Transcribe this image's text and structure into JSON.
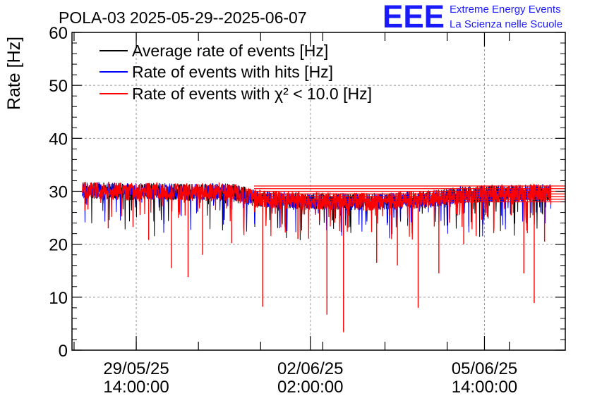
{
  "title": "POLA-03 2025-05-29--2025-06-07",
  "logo": {
    "mark": "EEE",
    "line1": "Extreme Energy Events",
    "line2": "La Scienza nelle Scuole",
    "color": "#1a1aff"
  },
  "chart_data": {
    "type": "line",
    "title": "POLA-03 2025-05-29--2025-06-07",
    "ylabel": "Rate [Hz]",
    "xlabel": "",
    "ylim": [
      0,
      60
    ],
    "xlim": [
      "2025-05-28T07:00:00",
      "2025-06-07T05:00:00"
    ],
    "y_ticks": [
      "0",
      "10",
      "20",
      "30",
      "40",
      "50",
      "60"
    ],
    "x_ticks": [
      {
        "date": "29/05/25",
        "time": "14:00:00",
        "x": "2025-05-29T14:00:00"
      },
      {
        "date": "02/06/25",
        "time": "02:00:00",
        "x": "2025-06-02T02:00:00"
      },
      {
        "date": "05/06/25",
        "time": "14:00:00",
        "x": "2025-06-05T14:00:00"
      }
    ],
    "grid": true,
    "legend_position": "top-left",
    "series": [
      {
        "name": "Average rate of events [Hz]",
        "color": "#000000"
      },
      {
        "name": "Rate of events with hits [Hz]",
        "color": "#0000ff"
      },
      {
        "name": "Rate of events with χ² < 10.0 [Hz]",
        "color": "#ff0000"
      }
    ],
    "data": [
      {
        "x": "2025-05-28T12:00:00",
        "y": 30.2
      },
      {
        "x": "2025-05-29T00:00:00",
        "y": 30.1
      },
      {
        "x": "2025-05-29T12:00:00",
        "y": 29.9
      },
      {
        "x": "2025-05-30T00:00:00",
        "y": 30.0
      },
      {
        "x": "2025-05-30T12:00:00",
        "y": 29.8
      },
      {
        "x": "2025-05-31T00:00:00",
        "y": 29.9
      },
      {
        "x": "2025-05-31T12:00:00",
        "y": 30.0
      },
      {
        "x": "2025-06-01T00:00:00",
        "y": 28.6
      },
      {
        "x": "2025-06-01T12:00:00",
        "y": 28.3
      },
      {
        "x": "2025-06-02T00:00:00",
        "y": 28.2
      },
      {
        "x": "2025-06-02T12:00:00",
        "y": 28.1
      },
      {
        "x": "2025-06-03T00:00:00",
        "y": 28.0
      },
      {
        "x": "2025-06-03T12:00:00",
        "y": 28.1
      },
      {
        "x": "2025-06-04T00:00:00",
        "y": 28.3
      },
      {
        "x": "2025-06-04T12:00:00",
        "y": 28.5
      },
      {
        "x": "2025-06-05T00:00:00",
        "y": 29.2
      },
      {
        "x": "2025-06-05T12:00:00",
        "y": 29.5
      },
      {
        "x": "2025-06-06T00:00:00",
        "y": 29.6
      },
      {
        "x": "2025-06-06T12:00:00",
        "y": 29.7
      },
      {
        "x": "2025-06-06T22:00:00",
        "y": 29.8
      }
    ],
    "dips": [
      {
        "x": "2025-05-29T00:30:00",
        "y": 23.0
      },
      {
        "x": "2025-05-29T20:00:00",
        "y": 20.8
      },
      {
        "x": "2025-05-30T07:00:00",
        "y": 15.5
      },
      {
        "x": "2025-05-30T15:00:00",
        "y": 13.8
      },
      {
        "x": "2025-05-30T22:00:00",
        "y": 18.0
      },
      {
        "x": "2025-05-31T12:00:00",
        "y": 20.2
      },
      {
        "x": "2025-06-01T03:00:00",
        "y": 8.2
      },
      {
        "x": "2025-06-01T20:00:00",
        "y": 21.0
      },
      {
        "x": "2025-06-02T10:00:00",
        "y": 6.7
      },
      {
        "x": "2025-06-02T18:00:00",
        "y": 3.4
      },
      {
        "x": "2025-06-03T10:00:00",
        "y": 16.5
      },
      {
        "x": "2025-06-03T20:00:00",
        "y": 16.0
      },
      {
        "x": "2025-06-04T06:00:00",
        "y": 8.0
      },
      {
        "x": "2025-06-04T16:00:00",
        "y": 14.5
      },
      {
        "x": "2025-06-05T04:00:00",
        "y": 20.0
      },
      {
        "x": "2025-06-06T09:00:00",
        "y": 14.5
      },
      {
        "x": "2025-06-06T14:00:00",
        "y": 8.9
      },
      {
        "x": "2025-06-06T19:00:00",
        "y": 20.5
      }
    ],
    "trailing_levels": [
      31.0,
      30.5,
      30.0,
      29.5,
      29.0,
      28.5,
      28.0
    ]
  }
}
